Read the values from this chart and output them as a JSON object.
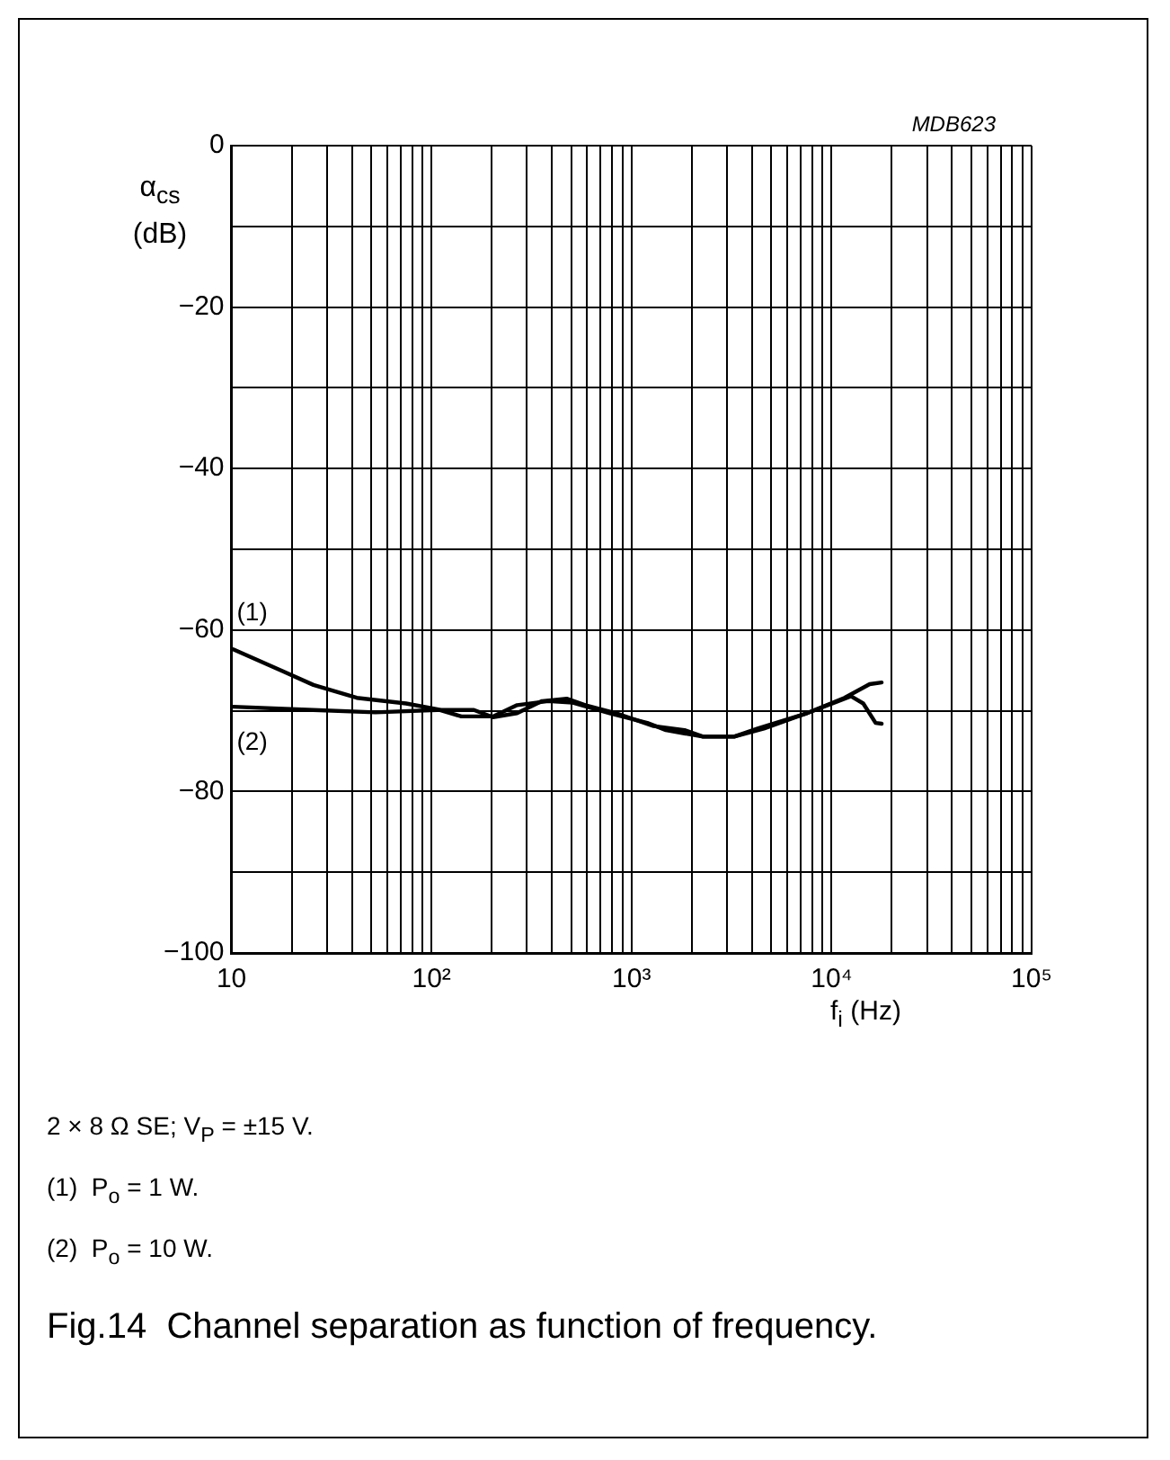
{
  "chart_data": {
    "type": "line",
    "title": "Fig.14  Channel separation as function of frequency.",
    "xlabel": "f$_{i}$ (Hz)",
    "ylabel": "α$_{cs}$ (dB)",
    "annotations": [
      "MDB623",
      "2 × 8 Ω SE; V$_{P}$ = ±15 V.",
      "(1)  P$_{o}$ = 1 W.",
      "(2)  P$_{o}$ = 10 W."
    ],
    "log": "x",
    "grid": true,
    "legend": false,
    "marker": "none",
    "line_style": "solid",
    "xlim": [
      10,
      100000
    ],
    "ylim": [
      -100,
      0
    ],
    "xticks": [
      10,
      {
        "value": 20,
        "label": null
      },
      {
        "value": 30,
        "label": null
      },
      {
        "value": 40,
        "label": null
      },
      {
        "value": 50,
        "label": null
      },
      {
        "value": 60,
        "label": null
      },
      {
        "value": 70,
        "label": null
      },
      {
        "value": 80,
        "label": null
      },
      {
        "value": 90,
        "label": null
      },
      {
        "value": 100,
        "label": "10²"
      },
      {
        "value": 200,
        "label": null
      },
      {
        "value": 300,
        "label": null
      },
      {
        "value": 400,
        "label": null
      },
      {
        "value": 500,
        "label": null
      },
      {
        "value": 600,
        "label": null
      },
      {
        "value": 700,
        "label": null
      },
      {
        "value": 800,
        "label": null
      },
      {
        "value": 900,
        "label": null
      },
      {
        "value": 1000,
        "label": "10³"
      },
      {
        "value": 2000,
        "label": null
      },
      {
        "value": 3000,
        "label": null
      },
      {
        "value": 4000,
        "label": null
      },
      {
        "value": 5000,
        "label": null
      },
      {
        "value": 6000,
        "label": null
      },
      {
        "value": 7000,
        "label": null
      },
      {
        "value": 8000,
        "label": null
      },
      {
        "value": 9000,
        "label": null
      },
      {
        "value": 10000,
        "label": "10⁴"
      },
      {
        "value": 20000,
        "label": null
      },
      {
        "value": 30000,
        "label": null
      },
      {
        "value": 40000,
        "label": null
      },
      {
        "value": 50000,
        "label": null
      },
      {
        "value": 60000,
        "label": null
      },
      {
        "value": 70000,
        "label": null
      },
      {
        "value": 80000,
        "label": null
      },
      {
        "value": 90000,
        "label": null
      },
      {
        "value": 100000,
        "label": "10⁵"
      }
    ],
    "yticks": [
      {
        "value": -100,
        "label": "−100"
      },
      {
        "value": -90,
        "label": null
      },
      {
        "value": -80,
        "label": "−80"
      },
      {
        "value": -70,
        "label": null
      },
      {
        "value": -60,
        "label": "−60"
      },
      {
        "value": -50,
        "label": null
      },
      {
        "value": -40,
        "label": "−40"
      },
      {
        "value": -30,
        "label": null
      },
      {
        "value": -20,
        "label": "−20"
      },
      {
        "value": -10,
        "label": null
      },
      0
    ],
    "series": [
      {
        "name": "(1)",
        "color": "#000000",
        "x": [
          10.2,
          18,
          25.7,
          42.3,
          74.6,
          106.7,
          141,
          203,
          268,
          383,
          509,
          778,
          1199,
          1485,
          2278,
          3256,
          4590,
          7540,
          10800,
          12500,
          14400,
          16600,
          17800
        ],
        "values": [
          -62.4,
          -65.1,
          -66.8,
          -68.4,
          -69.1,
          -69.8,
          -70.7,
          -70.7,
          -69.3,
          -68.8,
          -69,
          -70.3,
          -71.5,
          -72.4,
          -73.2,
          -73.2,
          -72.2,
          -70.3,
          -68.8,
          -68.2,
          -69.1,
          -71.5,
          -71.6
        ]
      },
      {
        "name": "(2)",
        "color": "#000000",
        "x": [
          10.2,
          25.7,
          52.4,
          106.7,
          163,
          203,
          268,
          357,
          474,
          587,
          836,
          1289,
          1840,
          2278,
          3256,
          4270,
          7540,
          11600,
          15500,
          17800
        ],
        "values": [
          -69.5,
          -69.9,
          -70.2,
          -69.9,
          -69.9,
          -70.8,
          -70.3,
          -68.8,
          -68.5,
          -69.3,
          -70.3,
          -71.9,
          -72.4,
          -73.2,
          -73.2,
          -72.2,
          -70.3,
          -68.4,
          -66.7,
          -66.5
        ]
      }
    ]
  }
}
